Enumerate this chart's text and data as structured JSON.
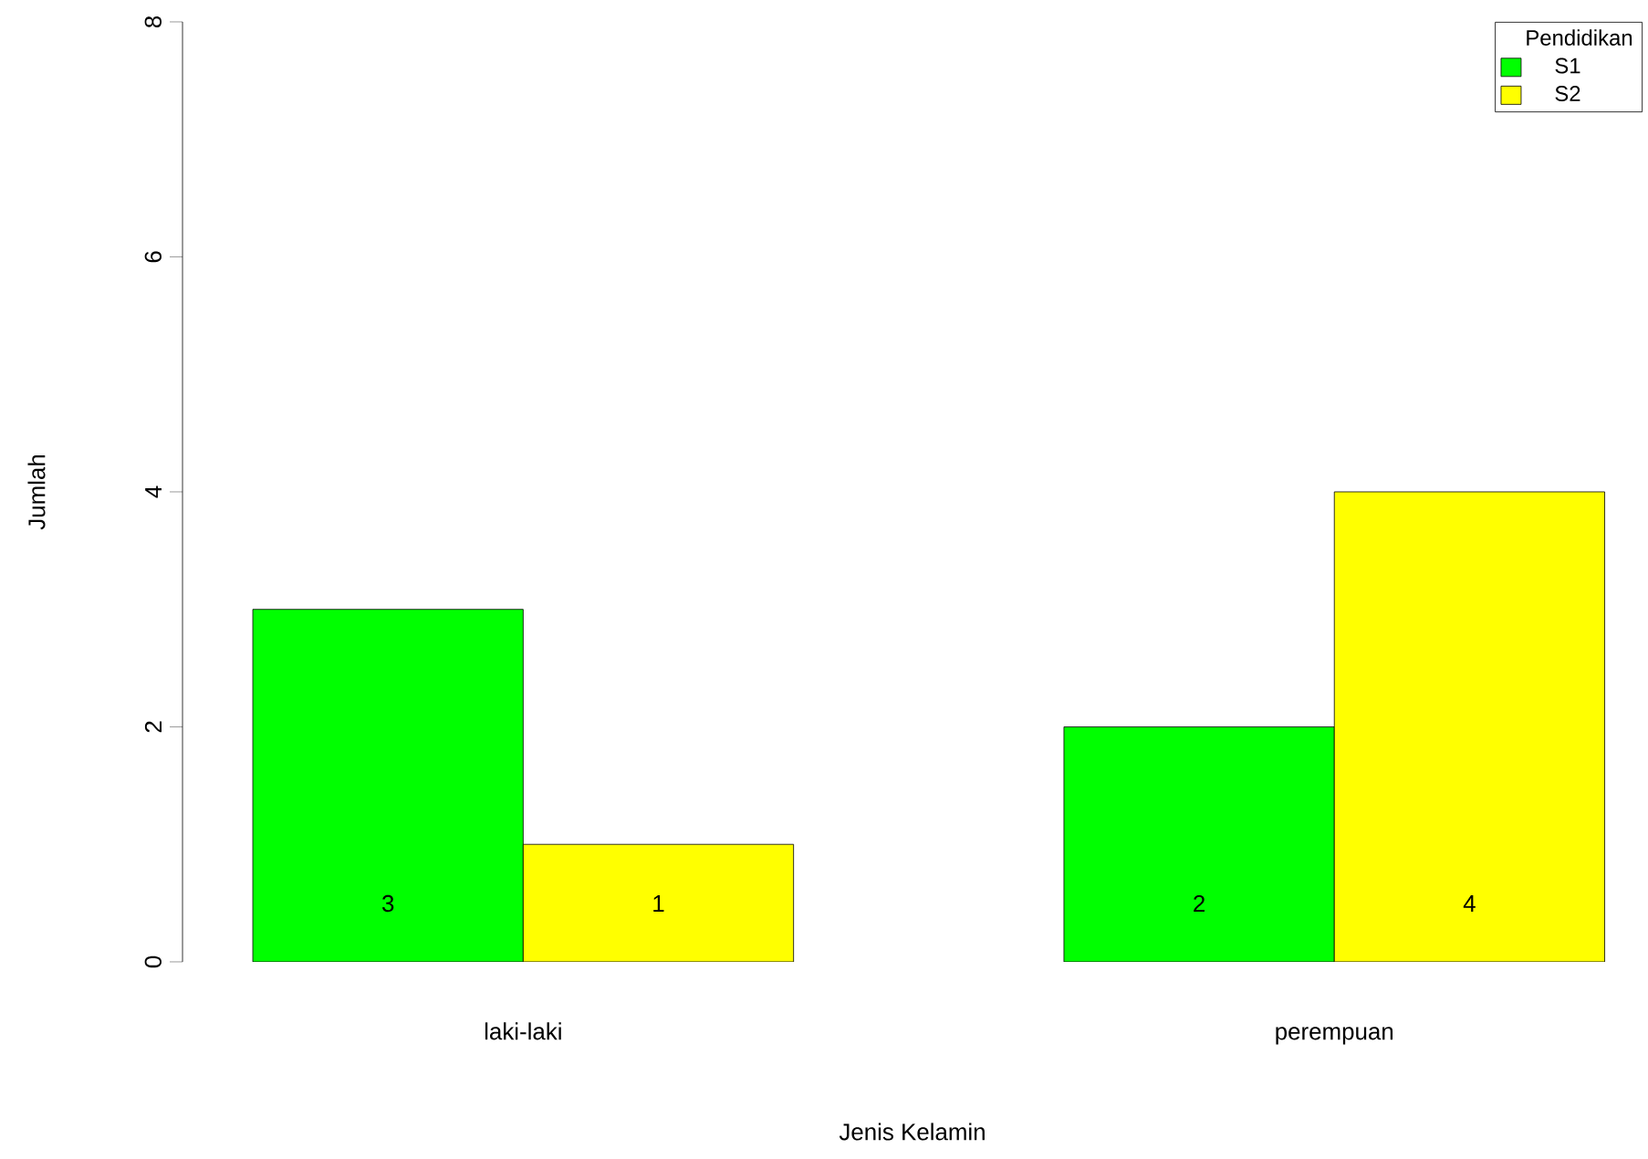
{
  "chart_data": {
    "type": "bar",
    "xlabel": "Jenis Kelamin",
    "ylabel": "Jumlah",
    "legend_title": "Pendidikan",
    "categories": [
      "laki-laki",
      "perempuan"
    ],
    "series": [
      {
        "name": "S1",
        "color": "#00ff00",
        "values": [
          3,
          2
        ]
      },
      {
        "name": "S2",
        "color": "#ffff00",
        "values": [
          1,
          4
        ]
      }
    ],
    "ylim": [
      0,
      8
    ],
    "yticks": [
      0,
      2,
      4,
      6,
      8
    ],
    "data_labels": true,
    "legend": "top right",
    "grid": false
  }
}
